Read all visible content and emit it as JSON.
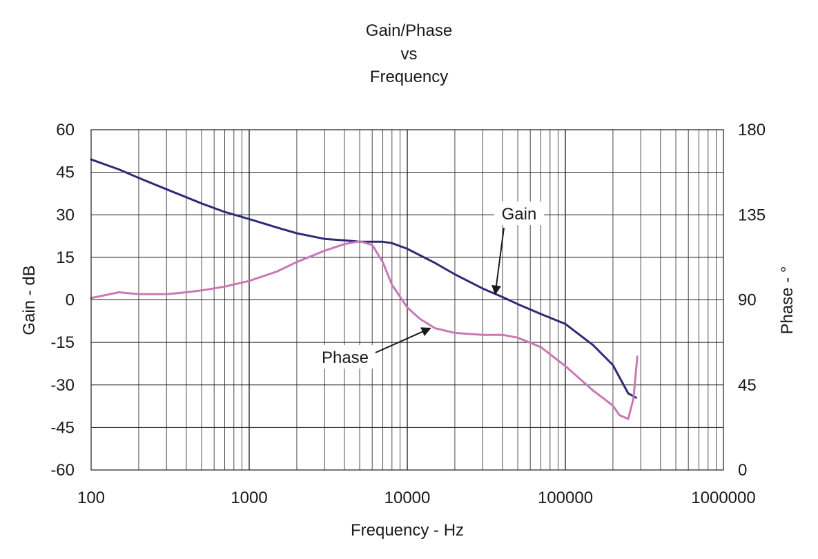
{
  "chart_data": {
    "type": "line",
    "title_lines": [
      "Gain/Phase",
      "vs",
      "Frequency"
    ],
    "xlabel": "Frequency - Hz",
    "ylabel_left": "Gain - dB",
    "ylabel_right": "Phase - °",
    "x_scale": "log",
    "xlim": [
      100,
      1000000
    ],
    "ylim_left": [
      -60,
      60
    ],
    "ylim_right": [
      0,
      180
    ],
    "x_ticks": [
      "100",
      "1000",
      "10000",
      "100000",
      "1000000"
    ],
    "y_ticks_left": [
      "60",
      "45",
      "30",
      "15",
      "0",
      "-15",
      "-30",
      "-45",
      "-60"
    ],
    "y_ticks_right": [
      "180",
      "135",
      "90",
      "45",
      "0"
    ],
    "grid": true,
    "legend": "none",
    "series": [
      {
        "name": "Gain",
        "axis": "left",
        "color": "#2e2a7a",
        "x": [
          100,
          150,
          200,
          300,
          500,
          700,
          1000,
          1500,
          2000,
          3000,
          4000,
          5000,
          6000,
          7000,
          8000,
          10000,
          15000,
          20000,
          30000,
          40000,
          50000,
          70000,
          100000,
          150000,
          200000,
          250000,
          280000
        ],
        "y": [
          49.5,
          46,
          43,
          39,
          34,
          31,
          28.5,
          25.5,
          23.5,
          21.5,
          21,
          20.5,
          20.5,
          20.5,
          20,
          18,
          13,
          9,
          4,
          1,
          -1.5,
          -5,
          -8.5,
          -16,
          -23,
          -33,
          -34.5
        ]
      },
      {
        "name": "Phase",
        "axis": "right",
        "color": "#c978b4",
        "x": [
          100,
          150,
          200,
          300,
          400,
          500,
          700,
          1000,
          1500,
          2000,
          3000,
          4000,
          5000,
          6000,
          7000,
          8000,
          10000,
          12000,
          15000,
          20000,
          30000,
          40000,
          50000,
          70000,
          100000,
          150000,
          180000,
          200000,
          220000,
          250000,
          270000,
          285000
        ],
        "y": [
          91,
          94,
          93,
          93,
          94,
          95,
          97,
          100,
          105,
          110,
          116,
          119.5,
          121,
          119,
          110,
          98,
          86,
          80,
          75,
          72.5,
          71.5,
          71.5,
          70,
          65,
          55,
          42,
          37,
          34,
          29,
          27,
          38,
          60
        ]
      }
    ],
    "annotations": [
      {
        "text": "Gain",
        "target_x": 36000,
        "target_y": 2,
        "axis": "left"
      },
      {
        "text": "Phase",
        "target_x": 14000,
        "target_y": 75,
        "axis": "right"
      }
    ]
  }
}
